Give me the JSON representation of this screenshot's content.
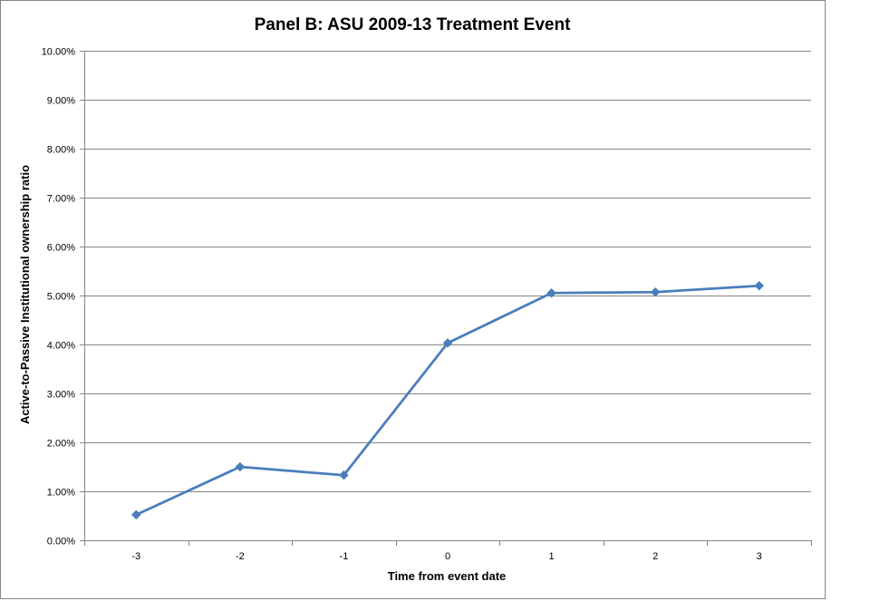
{
  "chart_data": {
    "type": "line",
    "title": "Panel B: ASU 2009-13 Treatment Event",
    "xlabel": "Time from event date",
    "ylabel": "Active-to-Passive Institutional ownership ratio",
    "categories": [
      "-3",
      "-2",
      "-1",
      "0",
      "1",
      "2",
      "3"
    ],
    "y_ticks": [
      "0.00%",
      "1.00%",
      "2.00%",
      "3.00%",
      "4.00%",
      "5.00%",
      "6.00%",
      "7.00%",
      "8.00%",
      "9.00%",
      "10.00%"
    ],
    "ylim": [
      0,
      10
    ],
    "y_unit": "percent",
    "grid": "horizontal",
    "legend": "none",
    "series": [
      {
        "values": [
          0.52,
          1.5,
          1.33,
          4.03,
          5.05,
          5.07,
          5.2
        ],
        "color": "#4a7ebb",
        "marker": "diamond"
      }
    ]
  }
}
